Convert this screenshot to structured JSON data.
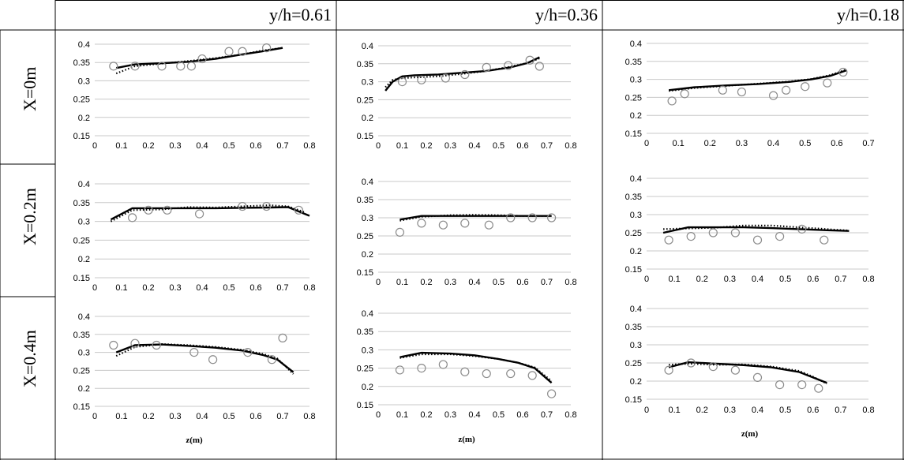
{
  "headers": [
    "y/h=0.61",
    "y/h=0.36",
    "y/h=0.18"
  ],
  "row_labels": [
    "X=0m",
    "X=0.2m",
    "X=0.4m"
  ],
  "chart_data": [
    {
      "type": "line",
      "x_unit": "z(m)",
      "ylim": [
        0.15,
        0.4
      ],
      "xlim": [
        0,
        0.8
      ],
      "circles": [
        [
          0.07,
          0.34
        ],
        [
          0.15,
          0.34
        ],
        [
          0.25,
          0.34
        ],
        [
          0.32,
          0.34
        ],
        [
          0.36,
          0.34
        ],
        [
          0.4,
          0.36
        ],
        [
          0.5,
          0.38
        ],
        [
          0.55,
          0.38
        ],
        [
          0.64,
          0.39
        ]
      ],
      "solid": [
        [
          0.08,
          0.335
        ],
        [
          0.15,
          0.345
        ],
        [
          0.25,
          0.348
        ],
        [
          0.35,
          0.352
        ],
        [
          0.45,
          0.36
        ],
        [
          0.55,
          0.372
        ],
        [
          0.62,
          0.38
        ],
        [
          0.7,
          0.39
        ]
      ],
      "dotted": [
        [
          0.08,
          0.32
        ],
        [
          0.15,
          0.34
        ],
        [
          0.25,
          0.347
        ],
        [
          0.35,
          0.354
        ],
        [
          0.45,
          0.362
        ],
        [
          0.55,
          0.372
        ],
        [
          0.62,
          0.382
        ],
        [
          0.7,
          0.39
        ]
      ]
    },
    {
      "type": "line",
      "x_unit": "z(m)",
      "ylim": [
        0.15,
        0.4
      ],
      "xlim": [
        0,
        0.8
      ],
      "circles": [
        [
          0.1,
          0.3
        ],
        [
          0.18,
          0.305
        ],
        [
          0.28,
          0.31
        ],
        [
          0.36,
          0.32
        ],
        [
          0.45,
          0.34
        ],
        [
          0.54,
          0.345
        ],
        [
          0.63,
          0.36
        ],
        [
          0.67,
          0.343
        ]
      ],
      "solid": [
        [
          0.03,
          0.275
        ],
        [
          0.06,
          0.3
        ],
        [
          0.1,
          0.315
        ],
        [
          0.15,
          0.318
        ],
        [
          0.25,
          0.32
        ],
        [
          0.35,
          0.325
        ],
        [
          0.45,
          0.33
        ],
        [
          0.55,
          0.34
        ],
        [
          0.62,
          0.352
        ],
        [
          0.67,
          0.368
        ]
      ],
      "dotted": [
        [
          0.03,
          0.285
        ],
        [
          0.06,
          0.305
        ],
        [
          0.1,
          0.31
        ],
        [
          0.15,
          0.312
        ],
        [
          0.25,
          0.315
        ],
        [
          0.35,
          0.322
        ],
        [
          0.45,
          0.33
        ],
        [
          0.55,
          0.342
        ],
        [
          0.62,
          0.352
        ],
        [
          0.67,
          0.365
        ]
      ]
    },
    {
      "type": "line",
      "x_unit": "z(m)",
      "ylim": [
        0.15,
        0.4
      ],
      "xlim": [
        0,
        0.7
      ],
      "circles": [
        [
          0.08,
          0.24
        ],
        [
          0.12,
          0.26
        ],
        [
          0.24,
          0.27
        ],
        [
          0.3,
          0.265
        ],
        [
          0.4,
          0.255
        ],
        [
          0.44,
          0.27
        ],
        [
          0.5,
          0.28
        ],
        [
          0.57,
          0.29
        ],
        [
          0.62,
          0.32
        ]
      ],
      "solid": [
        [
          0.07,
          0.27
        ],
        [
          0.15,
          0.278
        ],
        [
          0.25,
          0.283
        ],
        [
          0.35,
          0.287
        ],
        [
          0.45,
          0.293
        ],
        [
          0.52,
          0.3
        ],
        [
          0.58,
          0.31
        ],
        [
          0.63,
          0.325
        ]
      ],
      "dotted": [
        [
          0.07,
          0.268
        ],
        [
          0.15,
          0.276
        ],
        [
          0.25,
          0.282
        ],
        [
          0.35,
          0.288
        ],
        [
          0.45,
          0.294
        ],
        [
          0.52,
          0.301
        ],
        [
          0.58,
          0.312
        ],
        [
          0.63,
          0.327
        ]
      ]
    },
    {
      "type": "line",
      "x_unit": "z(m)",
      "ylim": [
        0.15,
        0.4
      ],
      "xlim": [
        0,
        0.8
      ],
      "circles": [
        [
          0.14,
          0.31
        ],
        [
          0.2,
          0.33
        ],
        [
          0.27,
          0.33
        ],
        [
          0.39,
          0.32
        ],
        [
          0.55,
          0.34
        ],
        [
          0.64,
          0.34
        ],
        [
          0.76,
          0.33
        ]
      ],
      "solid": [
        [
          0.06,
          0.305
        ],
        [
          0.14,
          0.335
        ],
        [
          0.25,
          0.335
        ],
        [
          0.35,
          0.335
        ],
        [
          0.45,
          0.335
        ],
        [
          0.55,
          0.336
        ],
        [
          0.65,
          0.337
        ],
        [
          0.72,
          0.338
        ],
        [
          0.8,
          0.315
        ]
      ],
      "dotted": [
        [
          0.06,
          0.3
        ],
        [
          0.14,
          0.33
        ],
        [
          0.25,
          0.332
        ],
        [
          0.35,
          0.338
        ],
        [
          0.45,
          0.337
        ],
        [
          0.55,
          0.34
        ],
        [
          0.65,
          0.343
        ],
        [
          0.72,
          0.34
        ],
        [
          0.78,
          0.325
        ]
      ]
    },
    {
      "type": "line",
      "x_unit": "z(m)",
      "ylim": [
        0.15,
        0.4
      ],
      "xlim": [
        0,
        0.8
      ],
      "circles": [
        [
          0.09,
          0.26
        ],
        [
          0.18,
          0.285
        ],
        [
          0.27,
          0.28
        ],
        [
          0.36,
          0.285
        ],
        [
          0.46,
          0.28
        ],
        [
          0.55,
          0.3
        ],
        [
          0.64,
          0.3
        ],
        [
          0.72,
          0.3
        ]
      ],
      "solid": [
        [
          0.09,
          0.295
        ],
        [
          0.18,
          0.305
        ],
        [
          0.3,
          0.305
        ],
        [
          0.4,
          0.305
        ],
        [
          0.5,
          0.305
        ],
        [
          0.6,
          0.305
        ],
        [
          0.72,
          0.305
        ]
      ],
      "dotted": [
        [
          0.09,
          0.292
        ],
        [
          0.18,
          0.303
        ],
        [
          0.3,
          0.307
        ],
        [
          0.4,
          0.308
        ],
        [
          0.5,
          0.307
        ],
        [
          0.6,
          0.305
        ],
        [
          0.72,
          0.305
        ]
      ]
    },
    {
      "type": "line",
      "x_unit": "z(m)",
      "ylim": [
        0.15,
        0.4
      ],
      "xlim": [
        0,
        0.8
      ],
      "circles": [
        [
          0.08,
          0.23
        ],
        [
          0.16,
          0.24
        ],
        [
          0.24,
          0.25
        ],
        [
          0.32,
          0.25
        ],
        [
          0.4,
          0.23
        ],
        [
          0.48,
          0.24
        ],
        [
          0.56,
          0.26
        ],
        [
          0.64,
          0.23
        ]
      ],
      "solid": [
        [
          0.06,
          0.25
        ],
        [
          0.15,
          0.265
        ],
        [
          0.25,
          0.265
        ],
        [
          0.35,
          0.265
        ],
        [
          0.45,
          0.263
        ],
        [
          0.55,
          0.26
        ],
        [
          0.65,
          0.257
        ],
        [
          0.73,
          0.255
        ]
      ],
      "dotted": [
        [
          0.06,
          0.26
        ],
        [
          0.15,
          0.262
        ],
        [
          0.25,
          0.264
        ],
        [
          0.35,
          0.27
        ],
        [
          0.45,
          0.27
        ],
        [
          0.55,
          0.265
        ],
        [
          0.65,
          0.26
        ],
        [
          0.73,
          0.256
        ]
      ]
    },
    {
      "type": "line",
      "x_unit": "z(m)",
      "ylim": [
        0.15,
        0.4
      ],
      "xlim": [
        0,
        0.8
      ],
      "circles": [
        [
          0.07,
          0.32
        ],
        [
          0.15,
          0.325
        ],
        [
          0.23,
          0.32
        ],
        [
          0.37,
          0.3
        ],
        [
          0.44,
          0.28
        ],
        [
          0.57,
          0.3
        ],
        [
          0.66,
          0.28
        ],
        [
          0.7,
          0.34
        ]
      ],
      "solid": [
        [
          0.08,
          0.3
        ],
        [
          0.15,
          0.32
        ],
        [
          0.25,
          0.322
        ],
        [
          0.35,
          0.318
        ],
        [
          0.45,
          0.313
        ],
        [
          0.55,
          0.305
        ],
        [
          0.63,
          0.292
        ],
        [
          0.68,
          0.28
        ],
        [
          0.74,
          0.245
        ]
      ],
      "dotted": [
        [
          0.08,
          0.29
        ],
        [
          0.15,
          0.315
        ],
        [
          0.25,
          0.323
        ],
        [
          0.35,
          0.32
        ],
        [
          0.45,
          0.315
        ],
        [
          0.55,
          0.307
        ],
        [
          0.63,
          0.295
        ],
        [
          0.68,
          0.283
        ],
        [
          0.74,
          0.24
        ]
      ]
    },
    {
      "type": "line",
      "x_unit": "z(m)",
      "ylim": [
        0.15,
        0.4
      ],
      "xlim": [
        0,
        0.8
      ],
      "circles": [
        [
          0.09,
          0.245
        ],
        [
          0.18,
          0.25
        ],
        [
          0.27,
          0.26
        ],
        [
          0.36,
          0.24
        ],
        [
          0.45,
          0.235
        ],
        [
          0.55,
          0.235
        ],
        [
          0.64,
          0.23
        ],
        [
          0.72,
          0.18
        ]
      ],
      "solid": [
        [
          0.09,
          0.28
        ],
        [
          0.18,
          0.292
        ],
        [
          0.3,
          0.29
        ],
        [
          0.4,
          0.285
        ],
        [
          0.5,
          0.275
        ],
        [
          0.58,
          0.265
        ],
        [
          0.65,
          0.25
        ],
        [
          0.72,
          0.21
        ]
      ],
      "dotted": [
        [
          0.09,
          0.278
        ],
        [
          0.18,
          0.288
        ],
        [
          0.3,
          0.288
        ],
        [
          0.4,
          0.283
        ],
        [
          0.5,
          0.275
        ],
        [
          0.58,
          0.265
        ],
        [
          0.65,
          0.252
        ],
        [
          0.72,
          0.215
        ]
      ]
    },
    {
      "type": "line",
      "x_unit": "z(m)",
      "ylim": [
        0.15,
        0.4
      ],
      "xlim": [
        0,
        0.8
      ],
      "circles": [
        [
          0.08,
          0.23
        ],
        [
          0.16,
          0.25
        ],
        [
          0.24,
          0.24
        ],
        [
          0.32,
          0.23
        ],
        [
          0.4,
          0.21
        ],
        [
          0.48,
          0.19
        ],
        [
          0.56,
          0.19
        ],
        [
          0.62,
          0.18
        ]
      ],
      "solid": [
        [
          0.08,
          0.238
        ],
        [
          0.15,
          0.252
        ],
        [
          0.25,
          0.248
        ],
        [
          0.35,
          0.244
        ],
        [
          0.45,
          0.238
        ],
        [
          0.55,
          0.225
        ],
        [
          0.6,
          0.21
        ],
        [
          0.65,
          0.195
        ]
      ],
      "dotted": [
        [
          0.08,
          0.245
        ],
        [
          0.15,
          0.248
        ],
        [
          0.25,
          0.245
        ],
        [
          0.35,
          0.246
        ],
        [
          0.45,
          0.24
        ],
        [
          0.55,
          0.228
        ],
        [
          0.6,
          0.212
        ],
        [
          0.65,
          0.193
        ]
      ]
    }
  ]
}
